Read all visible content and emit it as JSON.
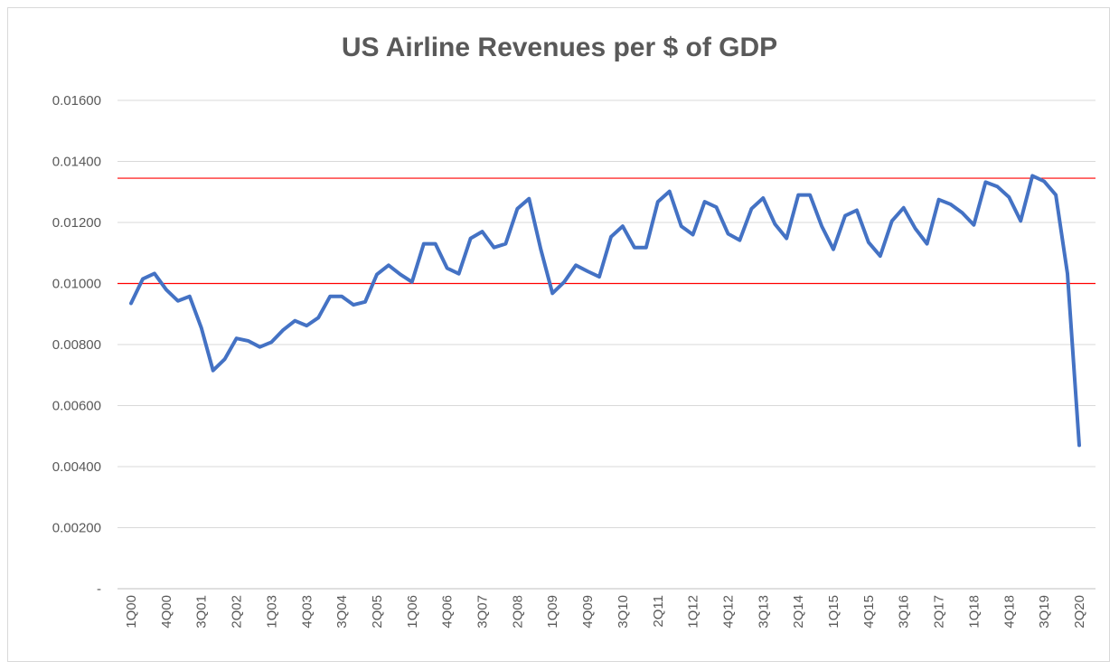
{
  "chart_data": {
    "type": "line",
    "title": "US Airline Revenues per $ of GDP",
    "xlabel": "",
    "ylabel": "",
    "ylim": [
      0,
      0.016
    ],
    "y_ticks": [
      {
        "value": 0,
        "label": "-"
      },
      {
        "value": 0.002,
        "label": "0.00200"
      },
      {
        "value": 0.004,
        "label": "0.00400"
      },
      {
        "value": 0.006,
        "label": "0.00600"
      },
      {
        "value": 0.008,
        "label": "0.00800"
      },
      {
        "value": 0.01,
        "label": "0.01000"
      },
      {
        "value": 0.012,
        "label": "0.01200"
      },
      {
        "value": 0.014,
        "label": "0.01400"
      },
      {
        "value": 0.016,
        "label": "0.01600"
      }
    ],
    "x_tick_labels": [
      "1Q00",
      "4Q00",
      "3Q01",
      "2Q02",
      "1Q03",
      "4Q03",
      "3Q04",
      "2Q05",
      "1Q06",
      "4Q06",
      "3Q07",
      "2Q08",
      "1Q09",
      "4Q09",
      "3Q10",
      "2Q11",
      "1Q12",
      "4Q12",
      "3Q13",
      "2Q14",
      "1Q15",
      "4Q15",
      "3Q16",
      "2Q17",
      "1Q18",
      "4Q18",
      "3Q19",
      "2Q20"
    ],
    "grid": true,
    "series": [
      {
        "color": "#4472c4",
        "x": [
          "1Q00",
          "2Q00",
          "3Q00",
          "4Q00",
          "1Q01",
          "2Q01",
          "3Q01",
          "4Q01",
          "1Q02",
          "2Q02",
          "3Q02",
          "4Q02",
          "1Q03",
          "2Q03",
          "3Q03",
          "4Q03",
          "1Q04",
          "2Q04",
          "3Q04",
          "4Q04",
          "1Q05",
          "2Q05",
          "3Q05",
          "4Q05",
          "1Q06",
          "2Q06",
          "3Q06",
          "4Q06",
          "1Q07",
          "2Q07",
          "3Q07",
          "4Q07",
          "1Q08",
          "2Q08",
          "3Q08",
          "4Q08",
          "1Q09",
          "2Q09",
          "3Q09",
          "4Q09",
          "1Q10",
          "2Q10",
          "3Q10",
          "4Q10",
          "1Q11",
          "2Q11",
          "3Q11",
          "4Q11",
          "1Q12",
          "2Q12",
          "3Q12",
          "4Q12",
          "1Q13",
          "2Q13",
          "3Q13",
          "4Q13",
          "1Q14",
          "2Q14",
          "3Q14",
          "4Q14",
          "1Q15",
          "2Q15",
          "3Q15",
          "4Q15",
          "1Q16",
          "2Q16",
          "3Q16",
          "4Q16",
          "1Q17",
          "2Q17",
          "3Q17",
          "4Q17",
          "1Q18",
          "2Q18",
          "3Q18",
          "4Q18",
          "1Q19",
          "2Q19",
          "3Q19",
          "4Q19",
          "1Q20",
          "2Q20"
        ],
        "values": [
          0.00935,
          0.01015,
          0.01033,
          0.0098,
          0.00943,
          0.00958,
          0.00855,
          0.00715,
          0.00752,
          0.0082,
          0.00812,
          0.00792,
          0.00808,
          0.00848,
          0.00878,
          0.00862,
          0.00888,
          0.00958,
          0.00958,
          0.0093,
          0.0094,
          0.0103,
          0.0106,
          0.0103,
          0.01005,
          0.0113,
          0.0113,
          0.0105,
          0.01032,
          0.01148,
          0.0117,
          0.01118,
          0.0113,
          0.01245,
          0.01278,
          0.01112,
          0.00968,
          0.01005,
          0.0106,
          0.0104,
          0.01022,
          0.01153,
          0.01188,
          0.01118,
          0.01118,
          0.01268,
          0.01302,
          0.01188,
          0.0116,
          0.01268,
          0.0125,
          0.01163,
          0.01142,
          0.01245,
          0.0128,
          0.01195,
          0.01148,
          0.0129,
          0.0129,
          0.01188,
          0.01112,
          0.01222,
          0.0124,
          0.01135,
          0.0109,
          0.01205,
          0.01248,
          0.0118,
          0.0113,
          0.01275,
          0.0126,
          0.01232,
          0.01192,
          0.01332,
          0.01318,
          0.01283,
          0.01205,
          0.01353,
          0.01335,
          0.0129,
          0.01032,
          0.0047
        ]
      }
    ],
    "reference_lines": [
      {
        "value": 0.01345,
        "color": "#ff0000"
      },
      {
        "value": 0.01,
        "color": "#ff0000"
      }
    ]
  }
}
